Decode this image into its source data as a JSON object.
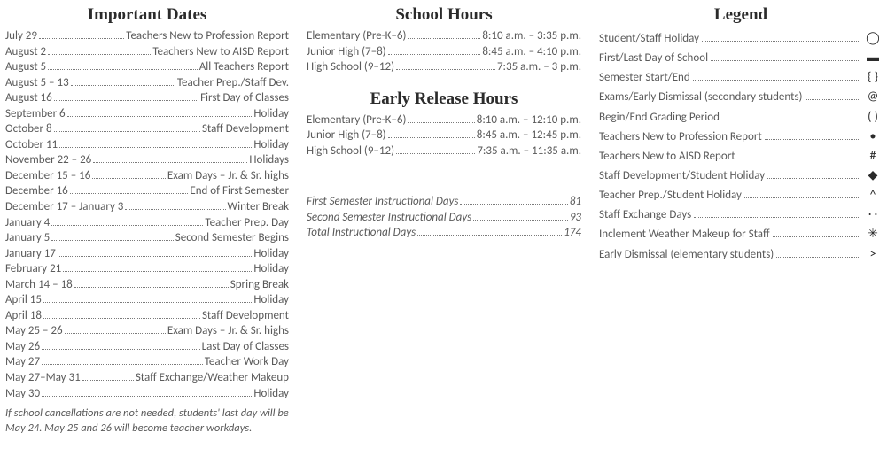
{
  "colors": {
    "text": "#5a5a5a",
    "heading": "#2b2b2b",
    "bg": "#ffffff"
  },
  "headings": {
    "dates": "Important Dates",
    "hours": "School Hours",
    "early": "Early Release Hours",
    "legend": "Legend"
  },
  "dates": [
    {
      "l": "July 29",
      "r": "Teachers New to Profession Report"
    },
    {
      "l": "August 2",
      "r": "Teachers New to AISD Report"
    },
    {
      "l": "August 5",
      "r": "All Teachers Report"
    },
    {
      "l": "August 5 – 13",
      "r": "Teacher Prep./Staff Dev."
    },
    {
      "l": "August 16",
      "r": "First Day of Classes"
    },
    {
      "l": "September 6",
      "r": "Holiday"
    },
    {
      "l": "October 8",
      "r": "Staff Development"
    },
    {
      "l": "October 11",
      "r": "Holiday"
    },
    {
      "l": "November 22 – 26",
      "r": "Holidays"
    },
    {
      "l": "December 15 – 16",
      "r": "Exam Days – Jr. & Sr. highs"
    },
    {
      "l": "December 16",
      "r": "End of First Semester"
    },
    {
      "l": "December 17 – January 3",
      "r": "Winter Break"
    },
    {
      "l": "January 4",
      "r": "Teacher Prep. Day"
    },
    {
      "l": "January 5",
      "r": "Second Semester Begins"
    },
    {
      "l": "January 17",
      "r": "Holiday"
    },
    {
      "l": "February 21",
      "r": "Holiday"
    },
    {
      "l": "March 14 – 18",
      "r": "Spring Break"
    },
    {
      "l": "April 15",
      "r": "Holiday"
    },
    {
      "l": "April 18",
      "r": "Staff Development"
    },
    {
      "l": "May 25 – 26",
      "r": "Exam Days – Jr. & Sr. highs"
    },
    {
      "l": "May 26",
      "r": "Last Day of Classes"
    },
    {
      "l": "May 27",
      "r": "Teacher Work Day"
    },
    {
      "l": "May 27–May 31",
      "r": "Staff Exchange/Weather Makeup"
    },
    {
      "l": "May 30",
      "r": "Holiday"
    }
  ],
  "dates_note": "If school cancellations are not needed, students' last day will be May 24.  May 25 and 26 will become teacher workdays.",
  "hours": [
    {
      "l": "Elementary (Pre-K–6)",
      "r": "8:10 a.m. – 3:35 p.m."
    },
    {
      "l": "Junior High (7–8)",
      "r": "8:45 a.m. – 4:10 p.m."
    },
    {
      "l": "High School (9–12)",
      "r": "7:35 a.m. – 3 p.m."
    }
  ],
  "early": [
    {
      "l": "Elementary (Pre-K–6)",
      "r": "8:10 a.m. – 12:10 p.m."
    },
    {
      "l": "Junior High (7–8)",
      "r": "8:45 a.m. – 12:45 p.m."
    },
    {
      "l": "High School (9–12)",
      "r": "7:35 a.m. – 11:35 a.m."
    }
  ],
  "instructional": [
    {
      "l": "First Semester Instructional Days",
      "r": "81"
    },
    {
      "l": "Second Semester Instructional Days",
      "r": "93"
    },
    {
      "l": "Total Instructional Days",
      "r": "174"
    }
  ],
  "legend": [
    {
      "l": "Student/Staff Holiday",
      "sym": "◯"
    },
    {
      "l": "First/Last Day of School",
      "sym": "▬"
    },
    {
      "l": "Semester Start/End",
      "sym": "{ }"
    },
    {
      "l": "Exams/Early Dismissal (secondary students)",
      "sym": "@"
    },
    {
      "l": "Begin/End Grading Period",
      "sym": "( )"
    },
    {
      "l": "Teachers New to Profession Report",
      "sym": "•"
    },
    {
      "l": "Teachers New to AISD Report",
      "sym": "#"
    },
    {
      "l": "Staff Development/Student Holiday",
      "sym": "◆"
    },
    {
      "l": "Teacher Prep./Student Holiday",
      "sym": "^"
    },
    {
      "l": "Staff Exchange Days",
      "sym": "· ·"
    },
    {
      "l": "Inclement Weather Makeup for Staff",
      "sym": "✳"
    },
    {
      "l": "Early Dismissal (elementary students)",
      "sym": ">"
    }
  ]
}
